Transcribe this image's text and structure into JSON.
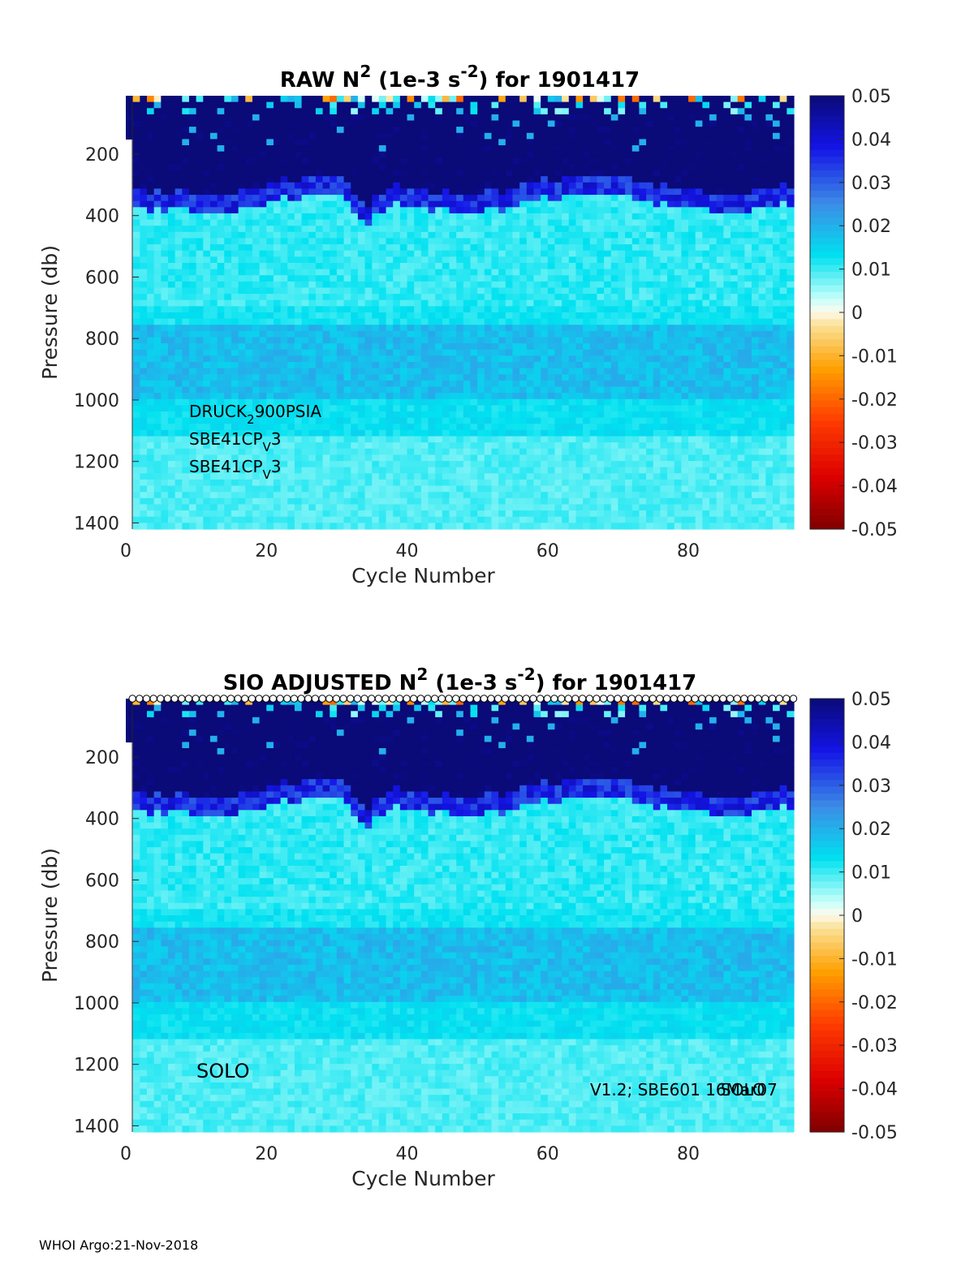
{
  "footer": "WHOI Argo:21-Nov-2018",
  "chart_data": [
    {
      "type": "heatmap",
      "title_parts": {
        "pre": "RAW N",
        "sup1": "2",
        "mid": " (1e-3 s",
        "sup2": "-2",
        "post": ") for 1901417"
      },
      "xlabel": "Cycle Number",
      "ylabel": "Pressure (db)",
      "xlim": [
        0,
        95
      ],
      "ylim": [
        1420,
        10
      ],
      "xticks": [
        0,
        20,
        40,
        60,
        80
      ],
      "yticks": [
        200,
        400,
        600,
        800,
        1000,
        1200,
        1400
      ],
      "colorbar": {
        "min": -0.05,
        "max": 0.05,
        "ticks": [
          "0.05",
          "0.04",
          "0.03",
          "0.02",
          "0.01",
          "0",
          "-0.01",
          "-0.02",
          "-0.03",
          "-0.04",
          "-0.05"
        ]
      },
      "annotations": [
        {
          "parts": [
            "DRUCK",
            "2",
            "900PSIA"
          ],
          "sub": true
        },
        {
          "parts": [
            "SBE41CP",
            "V",
            "3"
          ],
          "sub": true
        },
        {
          "parts": [
            "SBE41CP",
            "V",
            "3"
          ],
          "sub": true
        }
      ],
      "profile_markers": false,
      "seed": 7
    },
    {
      "type": "heatmap",
      "title_parts": {
        "pre": "SIO  ADJUSTED N",
        "sup1": "2",
        "mid": " (1e-3 s",
        "sup2": "-2",
        "post": ") for 1901417"
      },
      "xlabel": "Cycle Number",
      "ylabel": "Pressure (db)",
      "xlim": [
        0,
        95
      ],
      "ylim": [
        1420,
        10
      ],
      "xticks": [
        0,
        20,
        40,
        60,
        80
      ],
      "yticks": [
        200,
        400,
        600,
        800,
        1000,
        1200,
        1400
      ],
      "colorbar": {
        "min": -0.05,
        "max": 0.05,
        "ticks": [
          "0.05",
          "0.04",
          "0.03",
          "0.02",
          "0.01",
          "0",
          "-0.01",
          "-0.02",
          "-0.03",
          "-0.04",
          "-0.05"
        ]
      },
      "annotations_plain": [
        "SOLO",
        "V1.2; SBE601 16Mar07",
        "SOLO"
      ],
      "profile_markers": true,
      "seed": 7
    }
  ]
}
